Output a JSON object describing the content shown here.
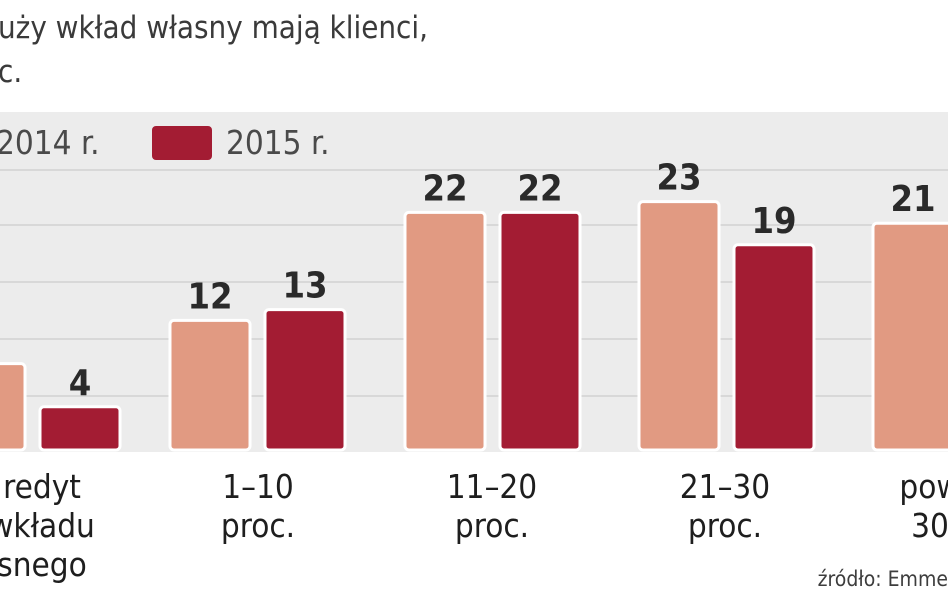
{
  "header": {
    "subtitle_lines": [
      "uży wkład własny mają klienci,",
      "c."
    ]
  },
  "source": "źródło: Emme",
  "chart_data": {
    "type": "bar",
    "categories": [
      [
        "redyt",
        "wkładu",
        "snego"
      ],
      [
        "1–10",
        "proc."
      ],
      [
        "11–20",
        "proc."
      ],
      [
        "21–30",
        "proc."
      ],
      [
        "pow",
        "30"
      ]
    ],
    "series": [
      {
        "name": "2014 r.",
        "color": "#e19a82",
        "values": [
          8,
          12,
          22,
          23,
          21
        ]
      },
      {
        "name": "2015 r.",
        "color": "#a31c33",
        "values": [
          4,
          13,
          22,
          19,
          null
        ]
      }
    ],
    "value_labels": [
      [
        "",
        "4"
      ],
      [
        "12",
        "13"
      ],
      [
        "22",
        "22"
      ],
      [
        "23",
        "19"
      ],
      [
        "21",
        ""
      ]
    ],
    "ylim": [
      0,
      25
    ],
    "grid": true,
    "legend": "top-left"
  }
}
